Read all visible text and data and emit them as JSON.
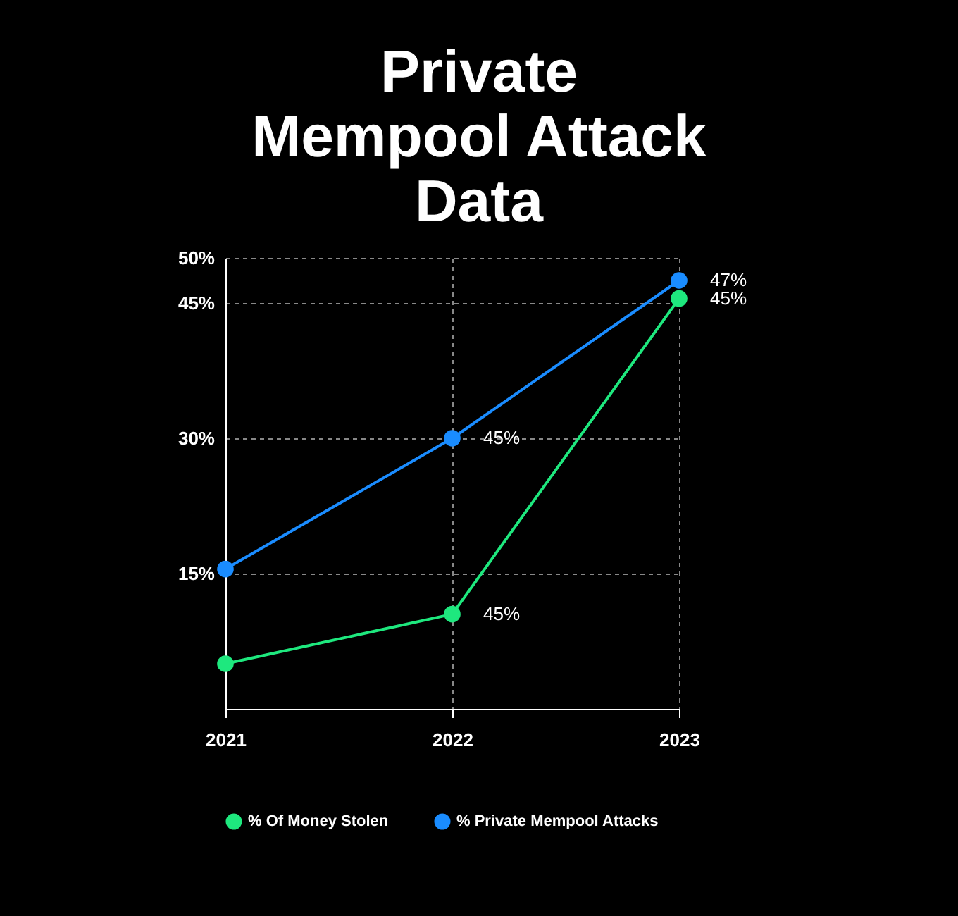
{
  "chart_data": {
    "type": "line",
    "title": "Private Mempool Attack Data",
    "categories": [
      "2021",
      "2022",
      "2023"
    ],
    "series": [
      {
        "name": "% Of Money Stolen",
        "color": "#1ee87e",
        "values": [
          5,
          10.5,
          45.5
        ]
      },
      {
        "name": "% Private Mempool Attacks",
        "color": "#1a8cff",
        "values": [
          15.5,
          30,
          47.5
        ]
      }
    ],
    "ylim": [
      0,
      50
    ],
    "yticks": [
      {
        "value": 15,
        "label": "15%"
      },
      {
        "value": 30,
        "label": "30%"
      },
      {
        "value": 45,
        "label": "45%"
      },
      {
        "value": 50,
        "label": "50%"
      }
    ],
    "annotations": [
      {
        "text": "45%",
        "x": "2022",
        "y": 30
      },
      {
        "text": "45%",
        "x": "2022",
        "y": 10.5
      },
      {
        "text": "47%",
        "x": "2023",
        "y": 47.5
      },
      {
        "text": "45%",
        "x": "2023",
        "y": 45.5
      }
    ],
    "grid": true,
    "legend": "bottom",
    "marker": "circle",
    "line_style": "solid"
  }
}
